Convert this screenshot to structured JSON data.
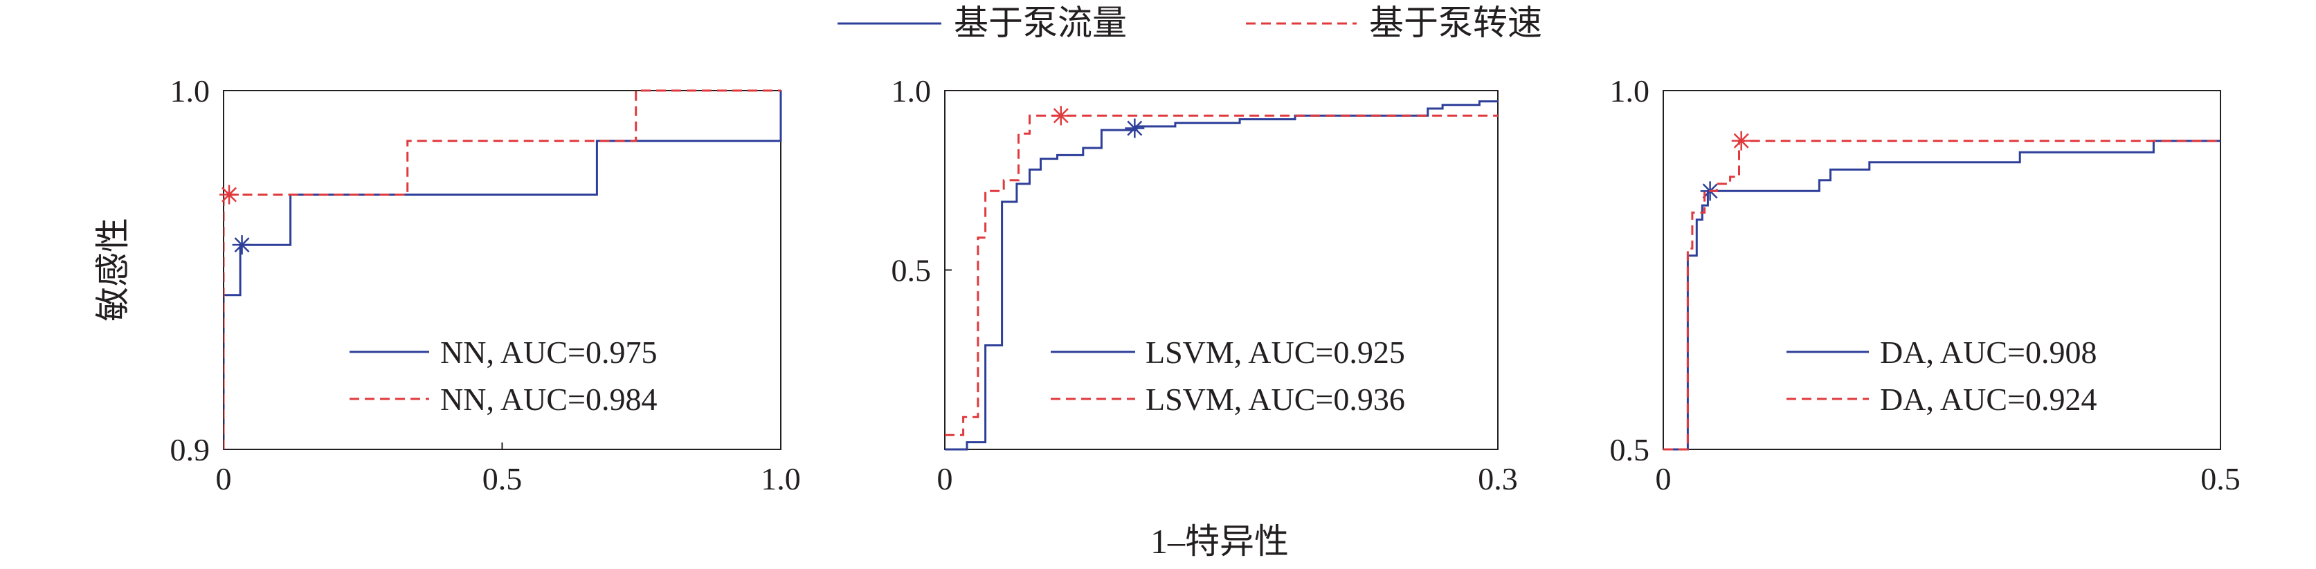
{
  "figure": {
    "legend": [
      {
        "label": "基于泵流量",
        "color": "#2e3f9a",
        "dash": "solid"
      },
      {
        "label": "基于泵转速",
        "color": "#e03a3e",
        "dash": "dashed"
      }
    ],
    "xlabel": "1–特异性",
    "ylabel": "敏感性"
  },
  "chart_data": [
    {
      "type": "line",
      "xlim": [
        0,
        1.0
      ],
      "ylim": [
        0.9,
        1.0
      ],
      "x_ticks": [
        "0",
        "0.5",
        "1.0"
      ],
      "y_ticks": [
        "0.9",
        "1.0"
      ],
      "series": [
        {
          "name": "NN, AUC=0.975",
          "color": "#2e3f9a",
          "dash": "solid",
          "x": [
            0,
            0,
            0.03,
            0.03,
            0.12,
            0.12,
            0.67,
            0.67,
            1.0,
            1.0
          ],
          "y": [
            0.9,
            0.943,
            0.943,
            0.957,
            0.957,
            0.971,
            0.971,
            0.986,
            0.986,
            1.0
          ],
          "marker": [
            0.033,
            0.957
          ]
        },
        {
          "name": "NN, AUC=0.984",
          "color": "#e03a3e",
          "dash": "dashed",
          "x": [
            0,
            0,
            0.33,
            0.33,
            0.74,
            0.74,
            1.0
          ],
          "y": [
            0.9,
            0.971,
            0.971,
            0.986,
            0.986,
            1.0,
            1.0
          ],
          "marker": [
            0.01,
            0.971
          ]
        }
      ]
    },
    {
      "type": "line",
      "xlim": [
        0,
        0.3
      ],
      "ylim": [
        0.0,
        1.0
      ],
      "x_ticks": [
        "0",
        "0.3"
      ],
      "y_ticks": [
        "0.5",
        "1.0"
      ],
      "series": [
        {
          "name": "LSVM, AUC=0.925",
          "color": "#2e3f9a",
          "dash": "solid",
          "x": [
            0,
            0.012,
            0.012,
            0.022,
            0.022,
            0.031,
            0.031,
            0.039,
            0.039,
            0.046,
            0.046,
            0.052,
            0.052,
            0.061,
            0.061,
            0.075,
            0.075,
            0.085,
            0.085,
            0.104,
            0.104,
            0.125,
            0.125,
            0.16,
            0.16,
            0.19,
            0.19,
            0.262,
            0.262,
            0.27,
            0.27,
            0.29,
            0.29,
            0.3
          ],
          "y": [
            0.0,
            0.0,
            0.02,
            0.02,
            0.29,
            0.29,
            0.69,
            0.69,
            0.74,
            0.74,
            0.78,
            0.78,
            0.81,
            0.81,
            0.82,
            0.82,
            0.84,
            0.84,
            0.89,
            0.89,
            0.9,
            0.9,
            0.91,
            0.91,
            0.92,
            0.92,
            0.93,
            0.93,
            0.95,
            0.95,
            0.96,
            0.96,
            0.97,
            0.97
          ],
          "marker": [
            0.103,
            0.895
          ]
        },
        {
          "name": "LSVM, AUC=0.936",
          "color": "#e03a3e",
          "dash": "dashed",
          "x": [
            0,
            0.01,
            0.01,
            0.018,
            0.018,
            0.022,
            0.022,
            0.032,
            0.032,
            0.04,
            0.04,
            0.046,
            0.046,
            0.3
          ],
          "y": [
            0.04,
            0.04,
            0.09,
            0.09,
            0.59,
            0.59,
            0.72,
            0.72,
            0.75,
            0.75,
            0.88,
            0.88,
            0.93,
            0.93
          ],
          "marker": [
            0.063,
            0.93
          ]
        }
      ]
    },
    {
      "type": "line",
      "xlim": [
        0,
        0.5
      ],
      "ylim": [
        0.5,
        1.0
      ],
      "x_ticks": [
        "0",
        "0.5"
      ],
      "y_ticks": [
        "0.5",
        "1.0"
      ],
      "series": [
        {
          "name": "DA, AUC=0.908",
          "color": "#2e3f9a",
          "dash": "solid",
          "x": [
            0,
            0.022,
            0.022,
            0.03,
            0.03,
            0.035,
            0.035,
            0.04,
            0.04,
            0.14,
            0.14,
            0.15,
            0.15,
            0.185,
            0.185,
            0.32,
            0.32,
            0.44,
            0.44,
            0.5
          ],
          "y": [
            0.5,
            0.5,
            0.77,
            0.77,
            0.82,
            0.82,
            0.84,
            0.84,
            0.86,
            0.86,
            0.875,
            0.875,
            0.89,
            0.89,
            0.9,
            0.9,
            0.914,
            0.914,
            0.93,
            0.93
          ],
          "marker": [
            0.042,
            0.86
          ]
        },
        {
          "name": "DA, AUC=0.924",
          "color": "#e03a3e",
          "dash": "dashed",
          "x": [
            0,
            0.022,
            0.022,
            0.026,
            0.026,
            0.037,
            0.037,
            0.048,
            0.048,
            0.06,
            0.06,
            0.068,
            0.068,
            0.5
          ],
          "y": [
            0.5,
            0.5,
            0.78,
            0.78,
            0.83,
            0.83,
            0.86,
            0.86,
            0.87,
            0.87,
            0.88,
            0.88,
            0.93,
            0.93
          ],
          "marker": [
            0.07,
            0.93
          ]
        }
      ]
    }
  ]
}
